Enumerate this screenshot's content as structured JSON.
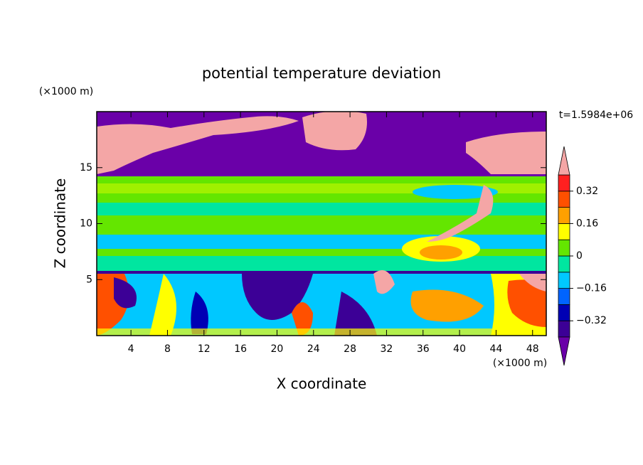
{
  "chart_data": {
    "type": "contour",
    "title": "potential temperature deviation",
    "xlabel": "X coordinate",
    "ylabel": "Z coordinate",
    "x_unit": "(×1000 m)",
    "y_unit": "(×1000 m)",
    "time_label": "t=1.5984e+06",
    "xlim": [
      0.25,
      49.5
    ],
    "xticks": [
      4,
      8,
      12,
      16,
      20,
      24,
      28,
      32,
      36,
      40,
      44,
      48
    ],
    "ylim": [
      0,
      20
    ],
    "yticks": [
      5,
      10,
      15
    ],
    "colorbar": {
      "levels": [
        -0.4,
        -0.32,
        -0.24,
        -0.16,
        -0.08,
        0,
        0.08,
        0.16,
        0.24,
        0.32,
        0.4
      ],
      "colors": [
        "#3c0096",
        "#0000b4",
        "#0064ff",
        "#00c8ff",
        "#00e6a0",
        "#64e600",
        "#ffff00",
        "#ffa000",
        "#ff5000",
        "#ff2020"
      ],
      "under_color": "#6a00a8",
      "over_color": "#f4a6a6",
      "ticks": [
        {
          "value": -0.32,
          "label": "−0.32"
        },
        {
          "value": -0.16,
          "label": "−0.16"
        },
        0,
        0.16,
        0.32
      ]
    }
  }
}
